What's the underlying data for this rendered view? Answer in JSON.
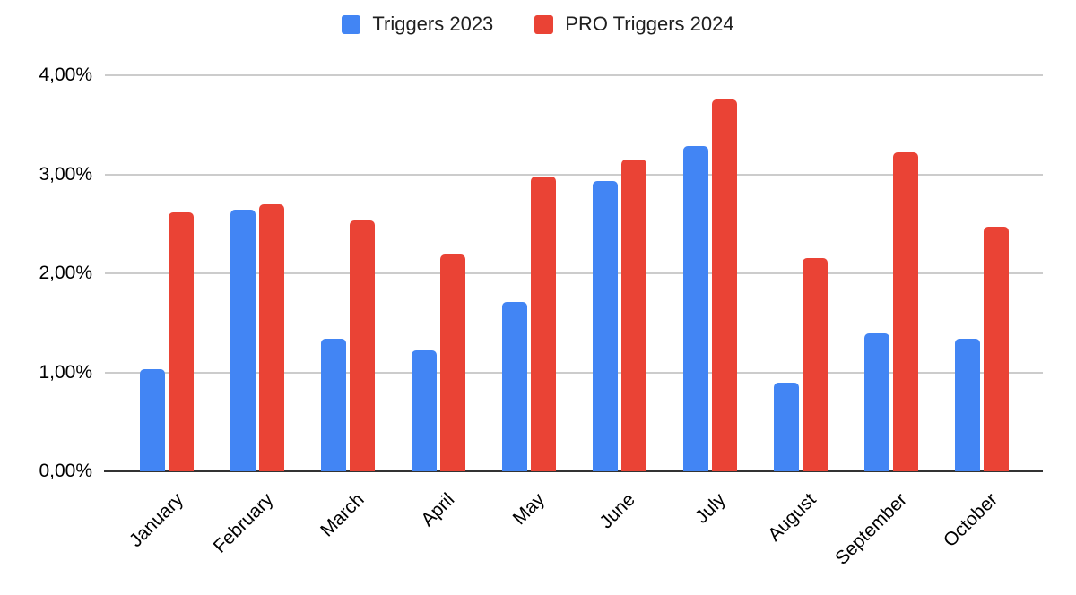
{
  "chart_data": {
    "type": "bar",
    "title": "",
    "categories": [
      "January",
      "February",
      "March",
      "April",
      "May",
      "June",
      "July",
      "August",
      "September",
      "October"
    ],
    "series": [
      {
        "name": "Triggers 2023",
        "color": "#4285F4",
        "values": [
          1.03,
          2.64,
          1.34,
          1.22,
          1.71,
          2.93,
          3.29,
          0.9,
          1.39,
          1.34
        ]
      },
      {
        "name": "PRO Triggers 2024",
        "color": "#EA4335",
        "values": [
          2.62,
          2.7,
          2.53,
          2.19,
          2.98,
          3.15,
          3.76,
          2.15,
          3.22,
          2.47
        ]
      }
    ],
    "xlabel": "",
    "ylabel": "",
    "ylim": [
      0,
      4
    ],
    "ytick_labels": [
      "0,00%",
      "1,00%",
      "2,00%",
      "3,00%",
      "4,00%"
    ],
    "value_unit": "%",
    "decimal_separator": ",",
    "grid": true,
    "legend_position": "top",
    "gridline_color": "#cccccc",
    "baseline_color": "#333333",
    "text_color": "#000000"
  }
}
